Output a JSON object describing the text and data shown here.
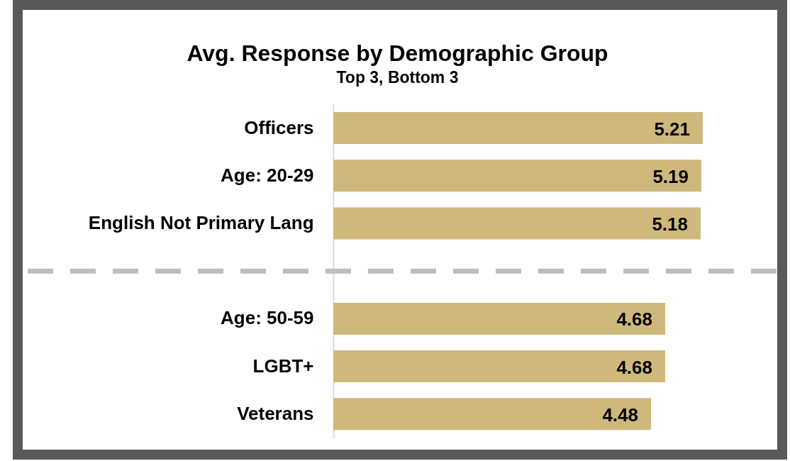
{
  "chart_data": {
    "type": "bar",
    "orientation": "horizontal",
    "title": "Avg. Response by Demographic Group",
    "subtitle": "Top 3, Bottom 3",
    "categories": [
      "Officers",
      "Age: 20-29",
      "English Not Primary Lang",
      null,
      "Age: 50-59",
      "LGBT+",
      "Veterans"
    ],
    "values": [
      5.21,
      5.19,
      5.18,
      null,
      4.68,
      4.68,
      4.48
    ],
    "color": "#cfb87c",
    "data_labels": true,
    "ref_lines": [
      {
        "axis": "y",
        "value": null,
        "color": "#bdbdbd",
        "line_style": "dashed"
      }
    ]
  }
}
